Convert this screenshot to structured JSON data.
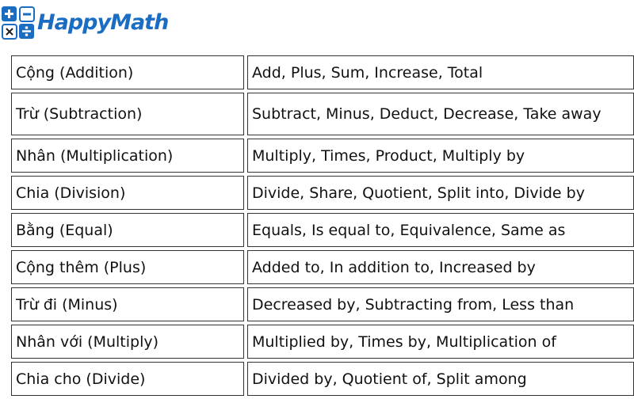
{
  "header": {
    "logo": "HappyMath"
  },
  "table": {
    "rows": [
      [
        "Cộng (Addition)",
        "Add, Plus, Sum, Increase, Total"
      ],
      [
        "Trừ (Subtraction)",
        "Subtract, Minus, Deduct, Decrease, Take away"
      ],
      [
        "Nhân (Multiplication)",
        "Multiply, Times, Product, Multiply by"
      ],
      [
        "Chia (Division)",
        "Divide, Share, Quotient, Split into, Divide by"
      ],
      [
        "Bằng (Equal)",
        "Equals, Is equal to, Equivalence, Same as"
      ],
      [
        "Cộng thêm (Plus)",
        "Added to, In addition to, Increased by"
      ],
      [
        "Trừ đi (Minus)",
        "Decreased by, Subtracting from, Less than"
      ],
      [
        "Nhân với (Multiply)",
        "Multiplied by, Times by, Multiplication of"
      ],
      [
        "Chia cho (Divide)",
        "Divided by, Quotient of, Split among"
      ]
    ]
  }
}
